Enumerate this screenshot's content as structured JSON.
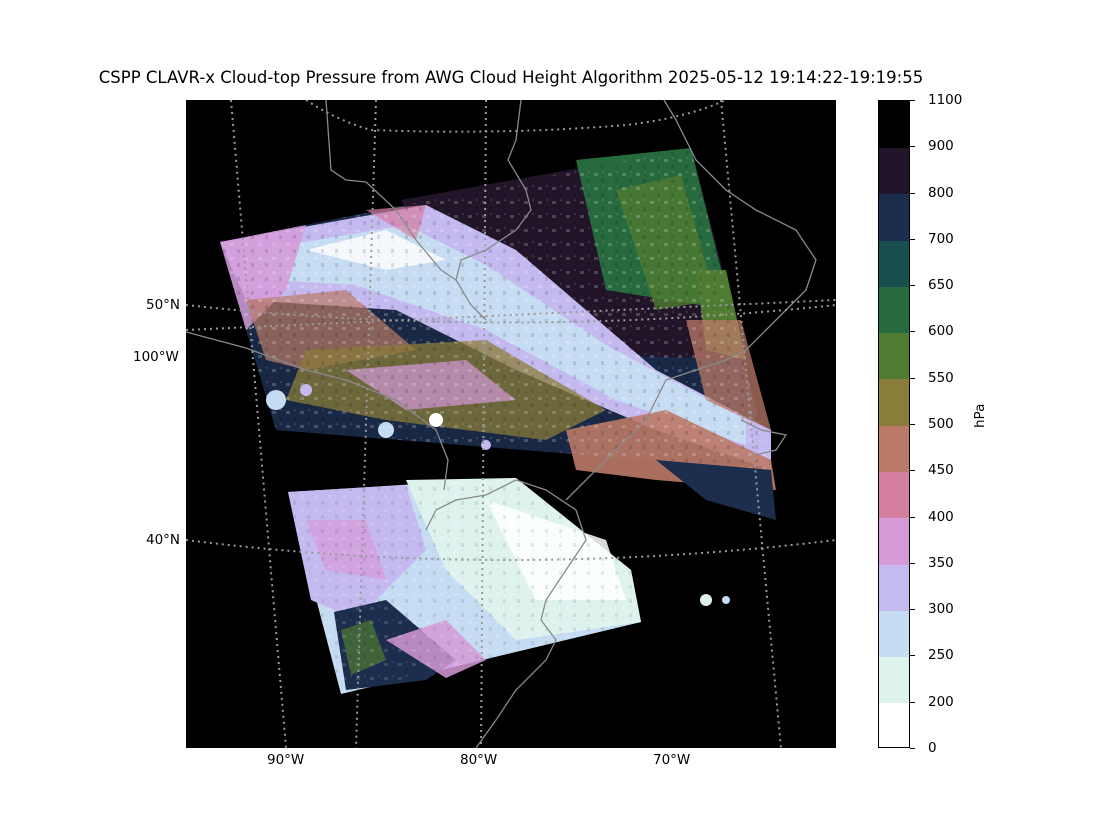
{
  "title": "CSPP CLAVR-x Cloud-top Pressure from AWG Cloud Height Algorithm 2025-05-12 19:14:22-19:19:55",
  "map": {
    "background": "#000000",
    "coastline_color": "#8a8a8a",
    "graticule_color": "#9a9a9a",
    "graticule_style": "dotted",
    "lat_labels": [
      "50°N",
      "40°N"
    ],
    "lon_labels": [
      "100°W",
      "90°W",
      "80°W",
      "70°W"
    ],
    "swaths": 2
  },
  "colorbar": {
    "unit": "hPa",
    "tick_labels": [
      "0",
      "200",
      "250",
      "300",
      "350",
      "400",
      "450",
      "500",
      "550",
      "600",
      "650",
      "700",
      "800",
      "900",
      "1100"
    ],
    "bins": [
      {
        "from": 0,
        "to": 200,
        "color": "#ffffff"
      },
      {
        "from": 200,
        "to": 250,
        "color": "#dff3ee"
      },
      {
        "from": 250,
        "to": 300,
        "color": "#c6dcf2"
      },
      {
        "from": 300,
        "to": 350,
        "color": "#c5baf0"
      },
      {
        "from": 350,
        "to": 400,
        "color": "#d59ad8"
      },
      {
        "from": 400,
        "to": 450,
        "color": "#d47ea0"
      },
      {
        "from": 450,
        "to": 500,
        "color": "#bb7a67"
      },
      {
        "from": 500,
        "to": 550,
        "color": "#8a7c3a"
      },
      {
        "from": 550,
        "to": 600,
        "color": "#4f7c32"
      },
      {
        "from": 600,
        "to": 650,
        "color": "#266a3e"
      },
      {
        "from": 650,
        "to": 700,
        "color": "#19504f"
      },
      {
        "from": 700,
        "to": 800,
        "color": "#1c2d4d"
      },
      {
        "from": 800,
        "to": 900,
        "color": "#221529"
      },
      {
        "from": 900,
        "to": 1100,
        "color": "#000000"
      }
    ]
  }
}
